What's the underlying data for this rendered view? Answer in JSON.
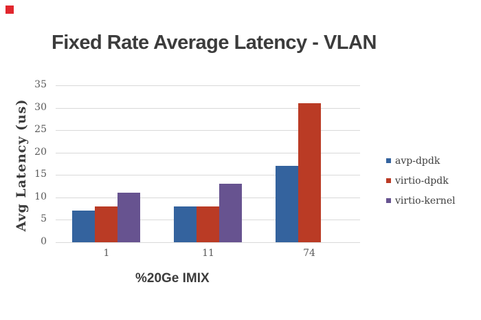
{
  "page": {
    "background": "#ffffff",
    "marker_color": "#e1262d"
  },
  "chart_data": {
    "type": "bar",
    "title": "Fixed Rate Average Latency - VLAN",
    "xlabel": "%20Ge IMIX",
    "ylabel": "Avg Latency (us)",
    "categories": [
      "1",
      "11",
      "74"
    ],
    "series": [
      {
        "name": "avp-dpdk",
        "color": "#34639e",
        "values": [
          7,
          8,
          17
        ]
      },
      {
        "name": "virtio-dpdk",
        "color": "#ba3b25",
        "values": [
          8,
          8,
          31
        ]
      },
      {
        "name": "virtio-kernel",
        "color": "#675390",
        "values": [
          11,
          13,
          0
        ]
      }
    ],
    "ylim": [
      0,
      35
    ],
    "yticks": [
      0,
      5,
      10,
      15,
      20,
      25,
      30,
      35
    ],
    "grid": true,
    "legend_position": "right",
    "colors": {
      "gridline": "#d9d9d9",
      "tick_label": "#595959",
      "title_text": "#3c3c3c",
      "legend_text": "#3e3e3e"
    }
  }
}
